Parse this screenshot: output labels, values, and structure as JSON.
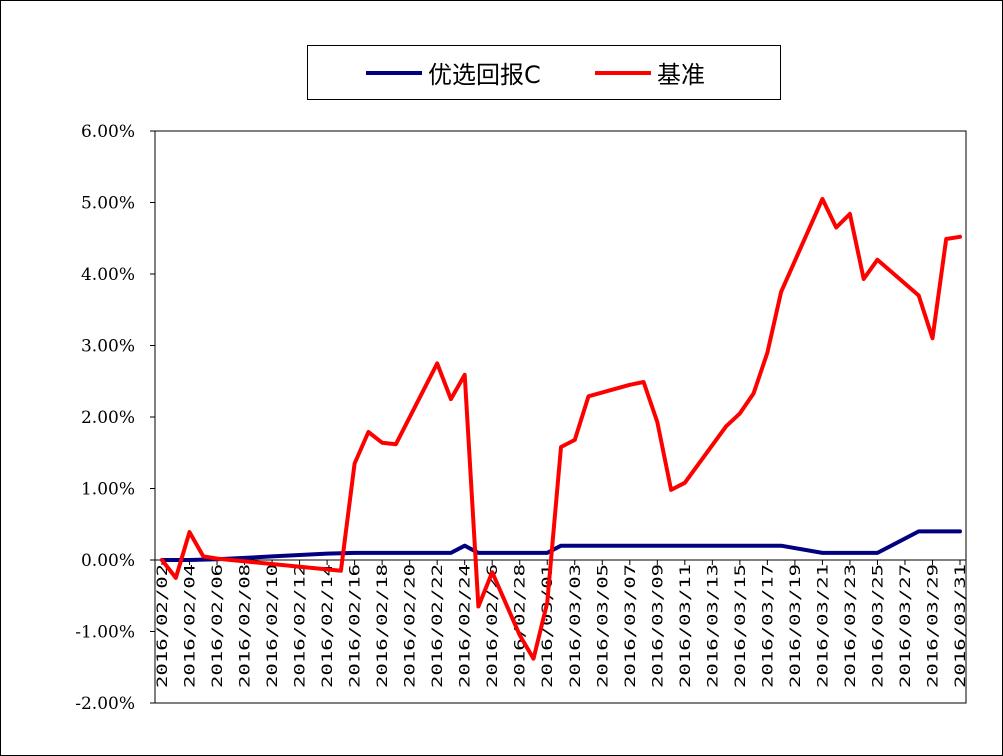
{
  "chart_data": {
    "type": "line",
    "title": "",
    "xlabel": "",
    "ylabel": "",
    "ylim": [
      -0.02,
      0.06
    ],
    "y_ticks": [
      "6.00%",
      "5.00%",
      "4.00%",
      "3.00%",
      "2.00%",
      "1.00%",
      "0.00%",
      "-1.00%",
      "-2.00%"
    ],
    "y_tick_values": [
      0.06,
      0.05,
      0.04,
      0.03,
      0.02,
      0.01,
      0.0,
      -0.01,
      -0.02
    ],
    "x_ticks": [
      "2016/02/02",
      "2016/02/04",
      "2016/02/06",
      "2016/02/08",
      "2016/02/10",
      "2016/02/12",
      "2016/02/14",
      "2016/02/16",
      "2016/02/18",
      "2016/02/20",
      "2016/02/22",
      "2016/02/24",
      "2016/02/26",
      "2016/02/28",
      "2016/03/01",
      "2016/03/03",
      "2016/03/05",
      "2016/03/07",
      "2016/03/09",
      "2016/03/11",
      "2016/03/13",
      "2016/03/15",
      "2016/03/17",
      "2016/03/19",
      "2016/03/21",
      "2016/03/23",
      "2016/03/25",
      "2016/03/27",
      "2016/03/29",
      "2016/03/31"
    ],
    "grid": false,
    "legend_position": "top",
    "series": [
      {
        "name": "优选回报C",
        "color": "#000080",
        "points": [
          [
            "2016/02/02",
            0.0
          ],
          [
            "2016/02/04",
            0.0
          ],
          [
            "2016/02/06",
            0.0001
          ],
          [
            "2016/02/08",
            0.0003
          ],
          [
            "2016/02/10",
            0.0005
          ],
          [
            "2016/02/12",
            0.0007
          ],
          [
            "2016/02/14",
            0.0009
          ],
          [
            "2016/02/16",
            0.001
          ],
          [
            "2016/02/18",
            0.001
          ],
          [
            "2016/02/20",
            0.001
          ],
          [
            "2016/02/22",
            0.001
          ],
          [
            "2016/02/23",
            0.001
          ],
          [
            "2016/02/24",
            0.002
          ],
          [
            "2016/02/25",
            0.001
          ],
          [
            "2016/02/26",
            0.001
          ],
          [
            "2016/02/28",
            0.001
          ],
          [
            "2016/03/01",
            0.001
          ],
          [
            "2016/03/02",
            0.002
          ],
          [
            "2016/03/03",
            0.002
          ],
          [
            "2016/03/09",
            0.002
          ],
          [
            "2016/03/17",
            0.002
          ],
          [
            "2016/03/18",
            0.002
          ],
          [
            "2016/03/21",
            0.001
          ],
          [
            "2016/03/25",
            0.001
          ],
          [
            "2016/03/28",
            0.004
          ],
          [
            "2016/03/31",
            0.004
          ]
        ]
      },
      {
        "name": "基准",
        "color": "#ff0000",
        "points": [
          [
            "2016/02/02",
            0.0
          ],
          [
            "2016/02/03",
            -0.0025
          ],
          [
            "2016/02/04",
            0.0039
          ],
          [
            "2016/02/05",
            0.0005
          ],
          [
            "2016/02/06",
            0.0002
          ],
          [
            "2016/02/15",
            -0.0015
          ],
          [
            "2016/02/16",
            0.0135
          ],
          [
            "2016/02/17",
            0.0179
          ],
          [
            "2016/02/18",
            0.0164
          ],
          [
            "2016/02/19",
            0.0162
          ],
          [
            "2016/02/22",
            0.0275
          ],
          [
            "2016/02/23",
            0.0225
          ],
          [
            "2016/02/24",
            0.0259
          ],
          [
            "2016/02/25",
            -0.0065
          ],
          [
            "2016/02/26",
            -0.0017
          ],
          [
            "2016/02/28",
            -0.0105
          ],
          [
            "2016/02/29",
            -0.0138
          ],
          [
            "2016/03/01",
            -0.006
          ],
          [
            "2016/03/02",
            0.0158
          ],
          [
            "2016/03/03",
            0.0168
          ],
          [
            "2016/03/04",
            0.0229
          ],
          [
            "2016/03/07",
            0.0245
          ],
          [
            "2016/03/08",
            0.0249
          ],
          [
            "2016/03/09",
            0.0193
          ],
          [
            "2016/03/10",
            0.0098
          ],
          [
            "2016/03/11",
            0.0108
          ],
          [
            "2016/03/14",
            0.0187
          ],
          [
            "2016/03/15",
            0.0205
          ],
          [
            "2016/03/16",
            0.0233
          ],
          [
            "2016/03/17",
            0.029
          ],
          [
            "2016/03/18",
            0.0375
          ],
          [
            "2016/03/21",
            0.0505
          ],
          [
            "2016/03/22",
            0.0465
          ],
          [
            "2016/03/23",
            0.0484
          ],
          [
            "2016/03/24",
            0.0393
          ],
          [
            "2016/03/25",
            0.042
          ],
          [
            "2016/03/28",
            0.037
          ],
          [
            "2016/03/29",
            0.031
          ],
          [
            "2016/03/30",
            0.0449
          ],
          [
            "2016/03/31",
            0.0452
          ]
        ]
      }
    ]
  }
}
